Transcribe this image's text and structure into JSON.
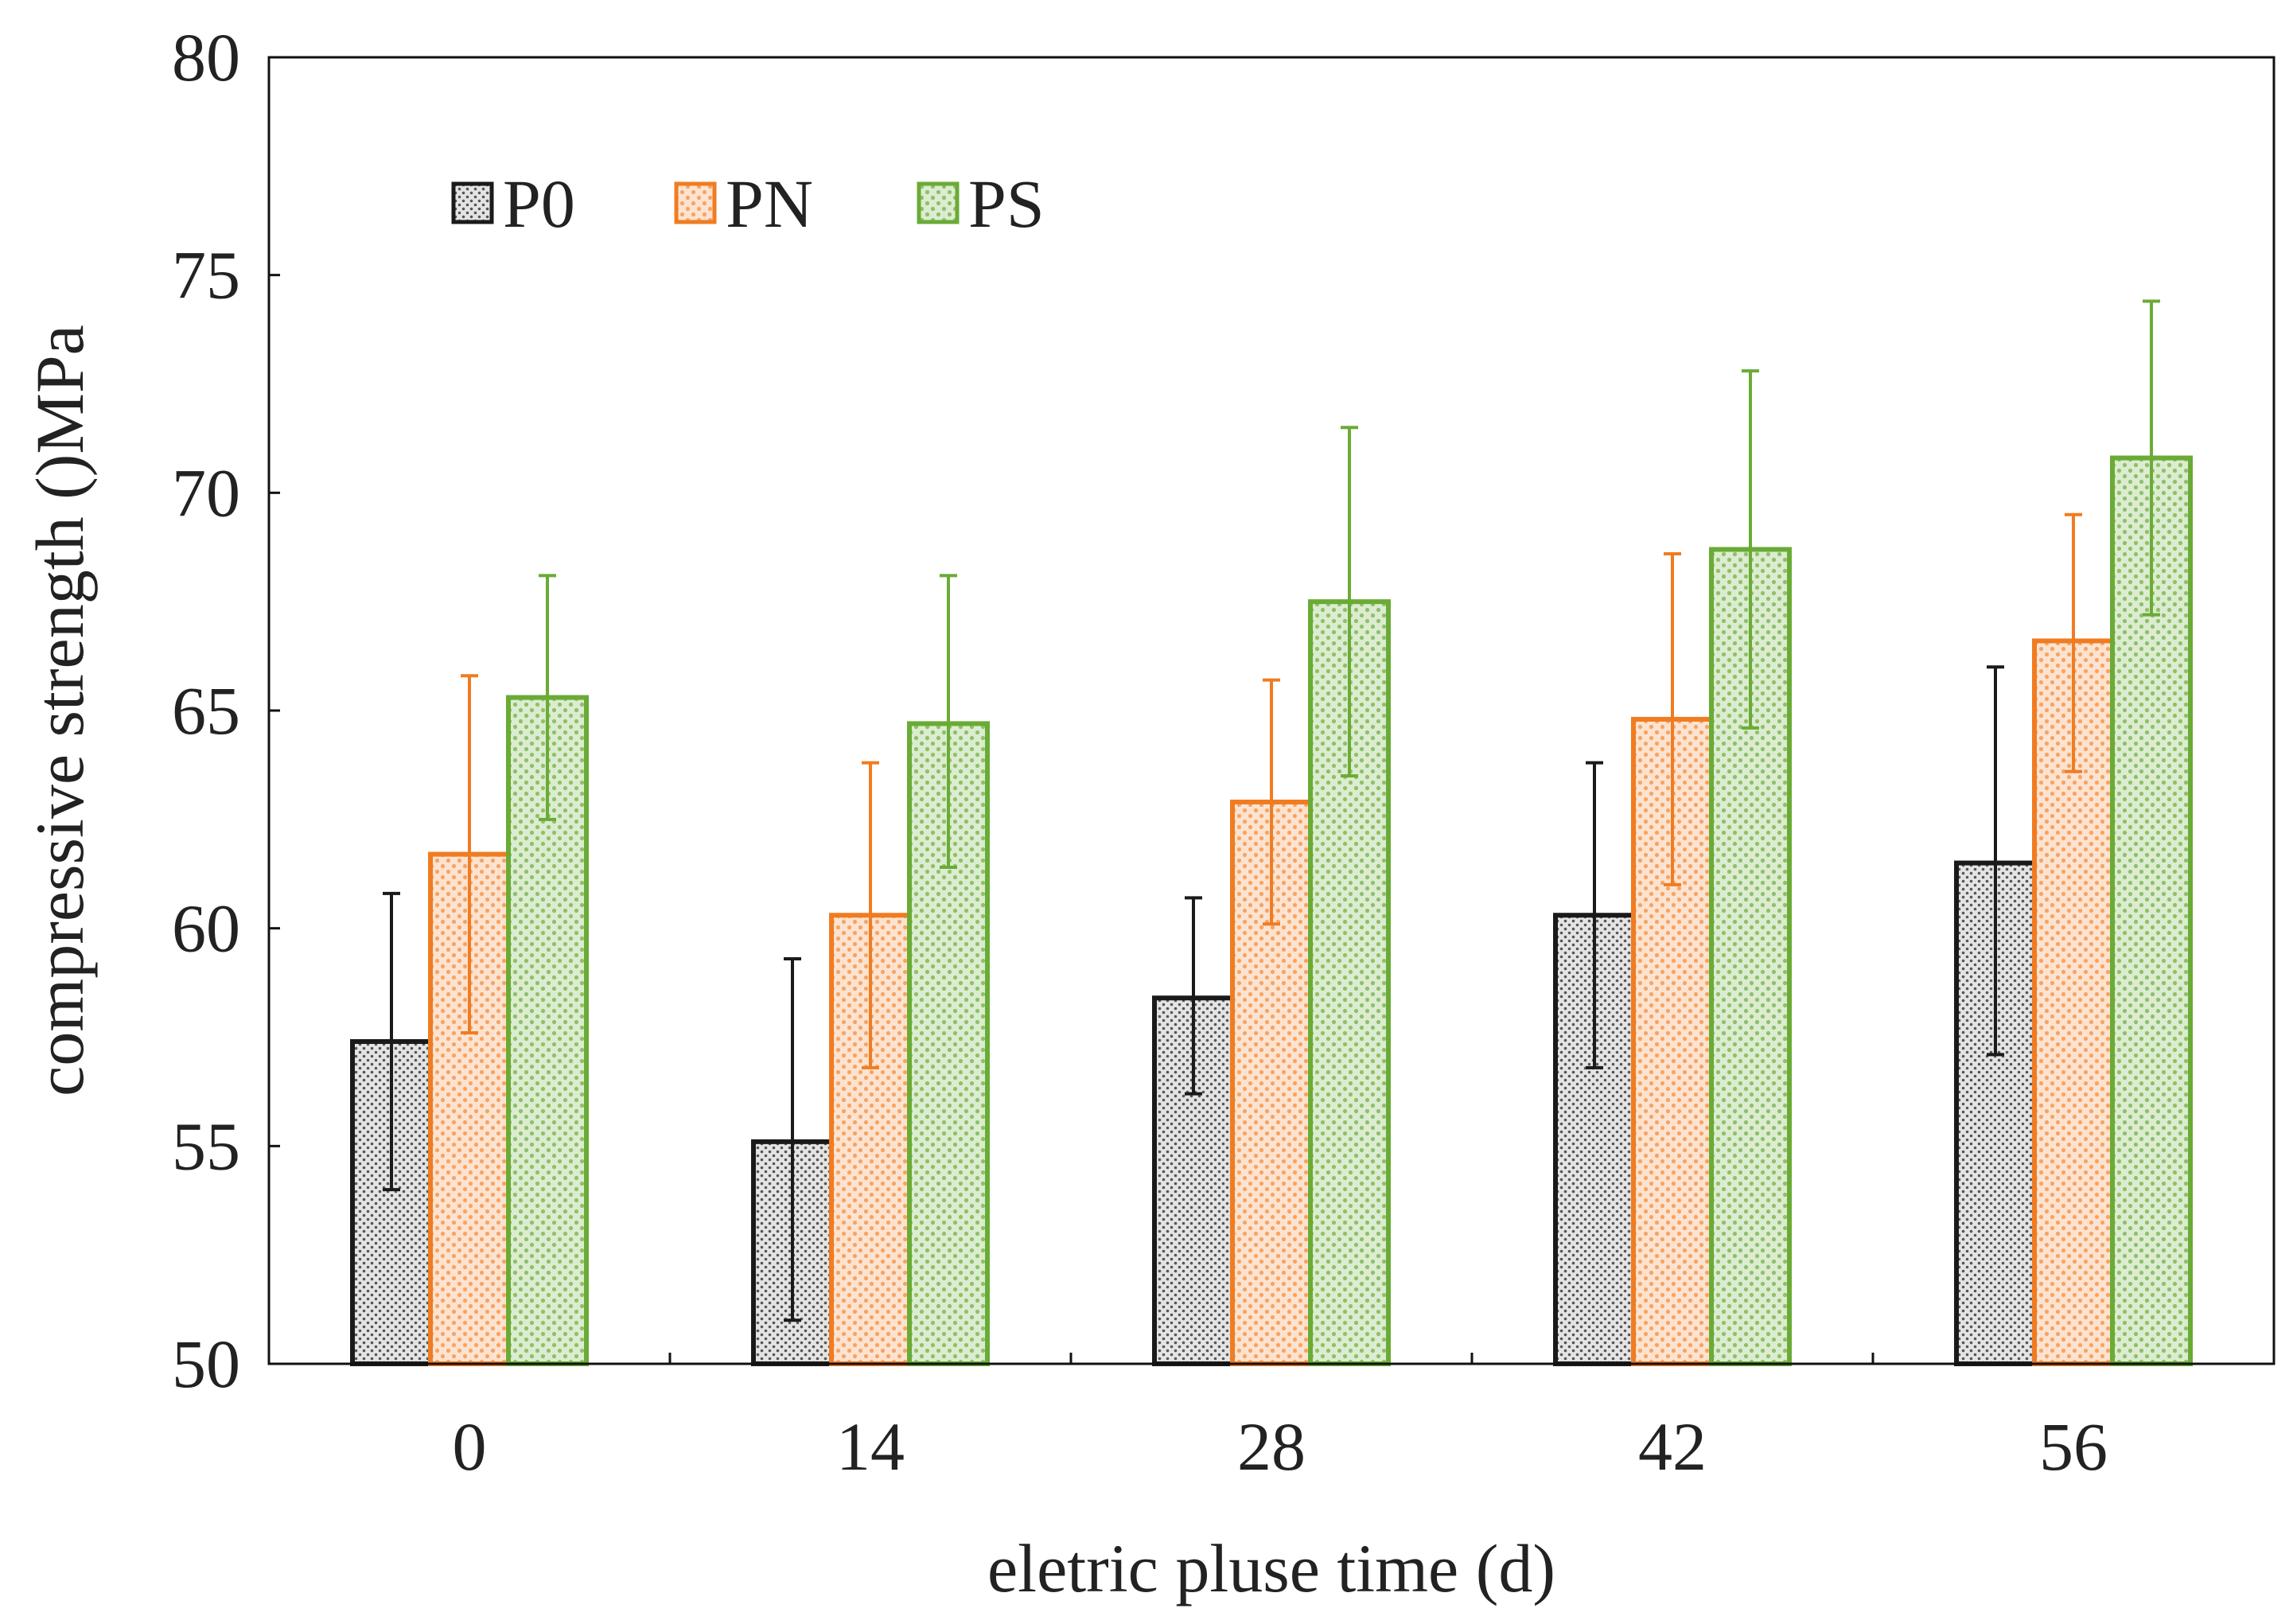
{
  "chart_data": {
    "type": "bar",
    "title": "",
    "xlabel": "eletric pluse time (d)",
    "ylabel": "compressive strength ()MPa",
    "ylim": [
      50,
      80
    ],
    "yticks": [
      50,
      55,
      60,
      65,
      70,
      75,
      80
    ],
    "categories": [
      "0",
      "14",
      "28",
      "42",
      "56"
    ],
    "legend_position": "top-left",
    "series": [
      {
        "name": "P0",
        "color": "#1a1a1a",
        "fill": "#d9d9d9",
        "values": [
          57.4,
          55.1,
          58.4,
          60.3,
          61.5
        ],
        "error_upper": [
          60.8,
          59.3,
          60.7,
          63.8,
          66.0
        ],
        "error_lower": [
          54.0,
          51.0,
          56.2,
          56.8,
          57.1
        ]
      },
      {
        "name": "PN",
        "color": "#f07c22",
        "fill": "#fad1b0",
        "values": [
          61.7,
          60.3,
          62.9,
          64.8,
          66.6
        ],
        "error_upper": [
          65.8,
          63.8,
          65.7,
          68.6,
          69.5
        ],
        "error_lower": [
          57.6,
          56.8,
          60.1,
          61.0,
          63.6
        ]
      },
      {
        "name": "PS",
        "color": "#6aab35",
        "fill": "#cfe5bd",
        "values": [
          65.3,
          64.7,
          67.5,
          68.7,
          70.8
        ],
        "error_upper": [
          68.1,
          68.1,
          71.5,
          72.8,
          74.4
        ],
        "error_lower": [
          62.5,
          61.4,
          63.5,
          64.6,
          67.2
        ]
      }
    ]
  }
}
